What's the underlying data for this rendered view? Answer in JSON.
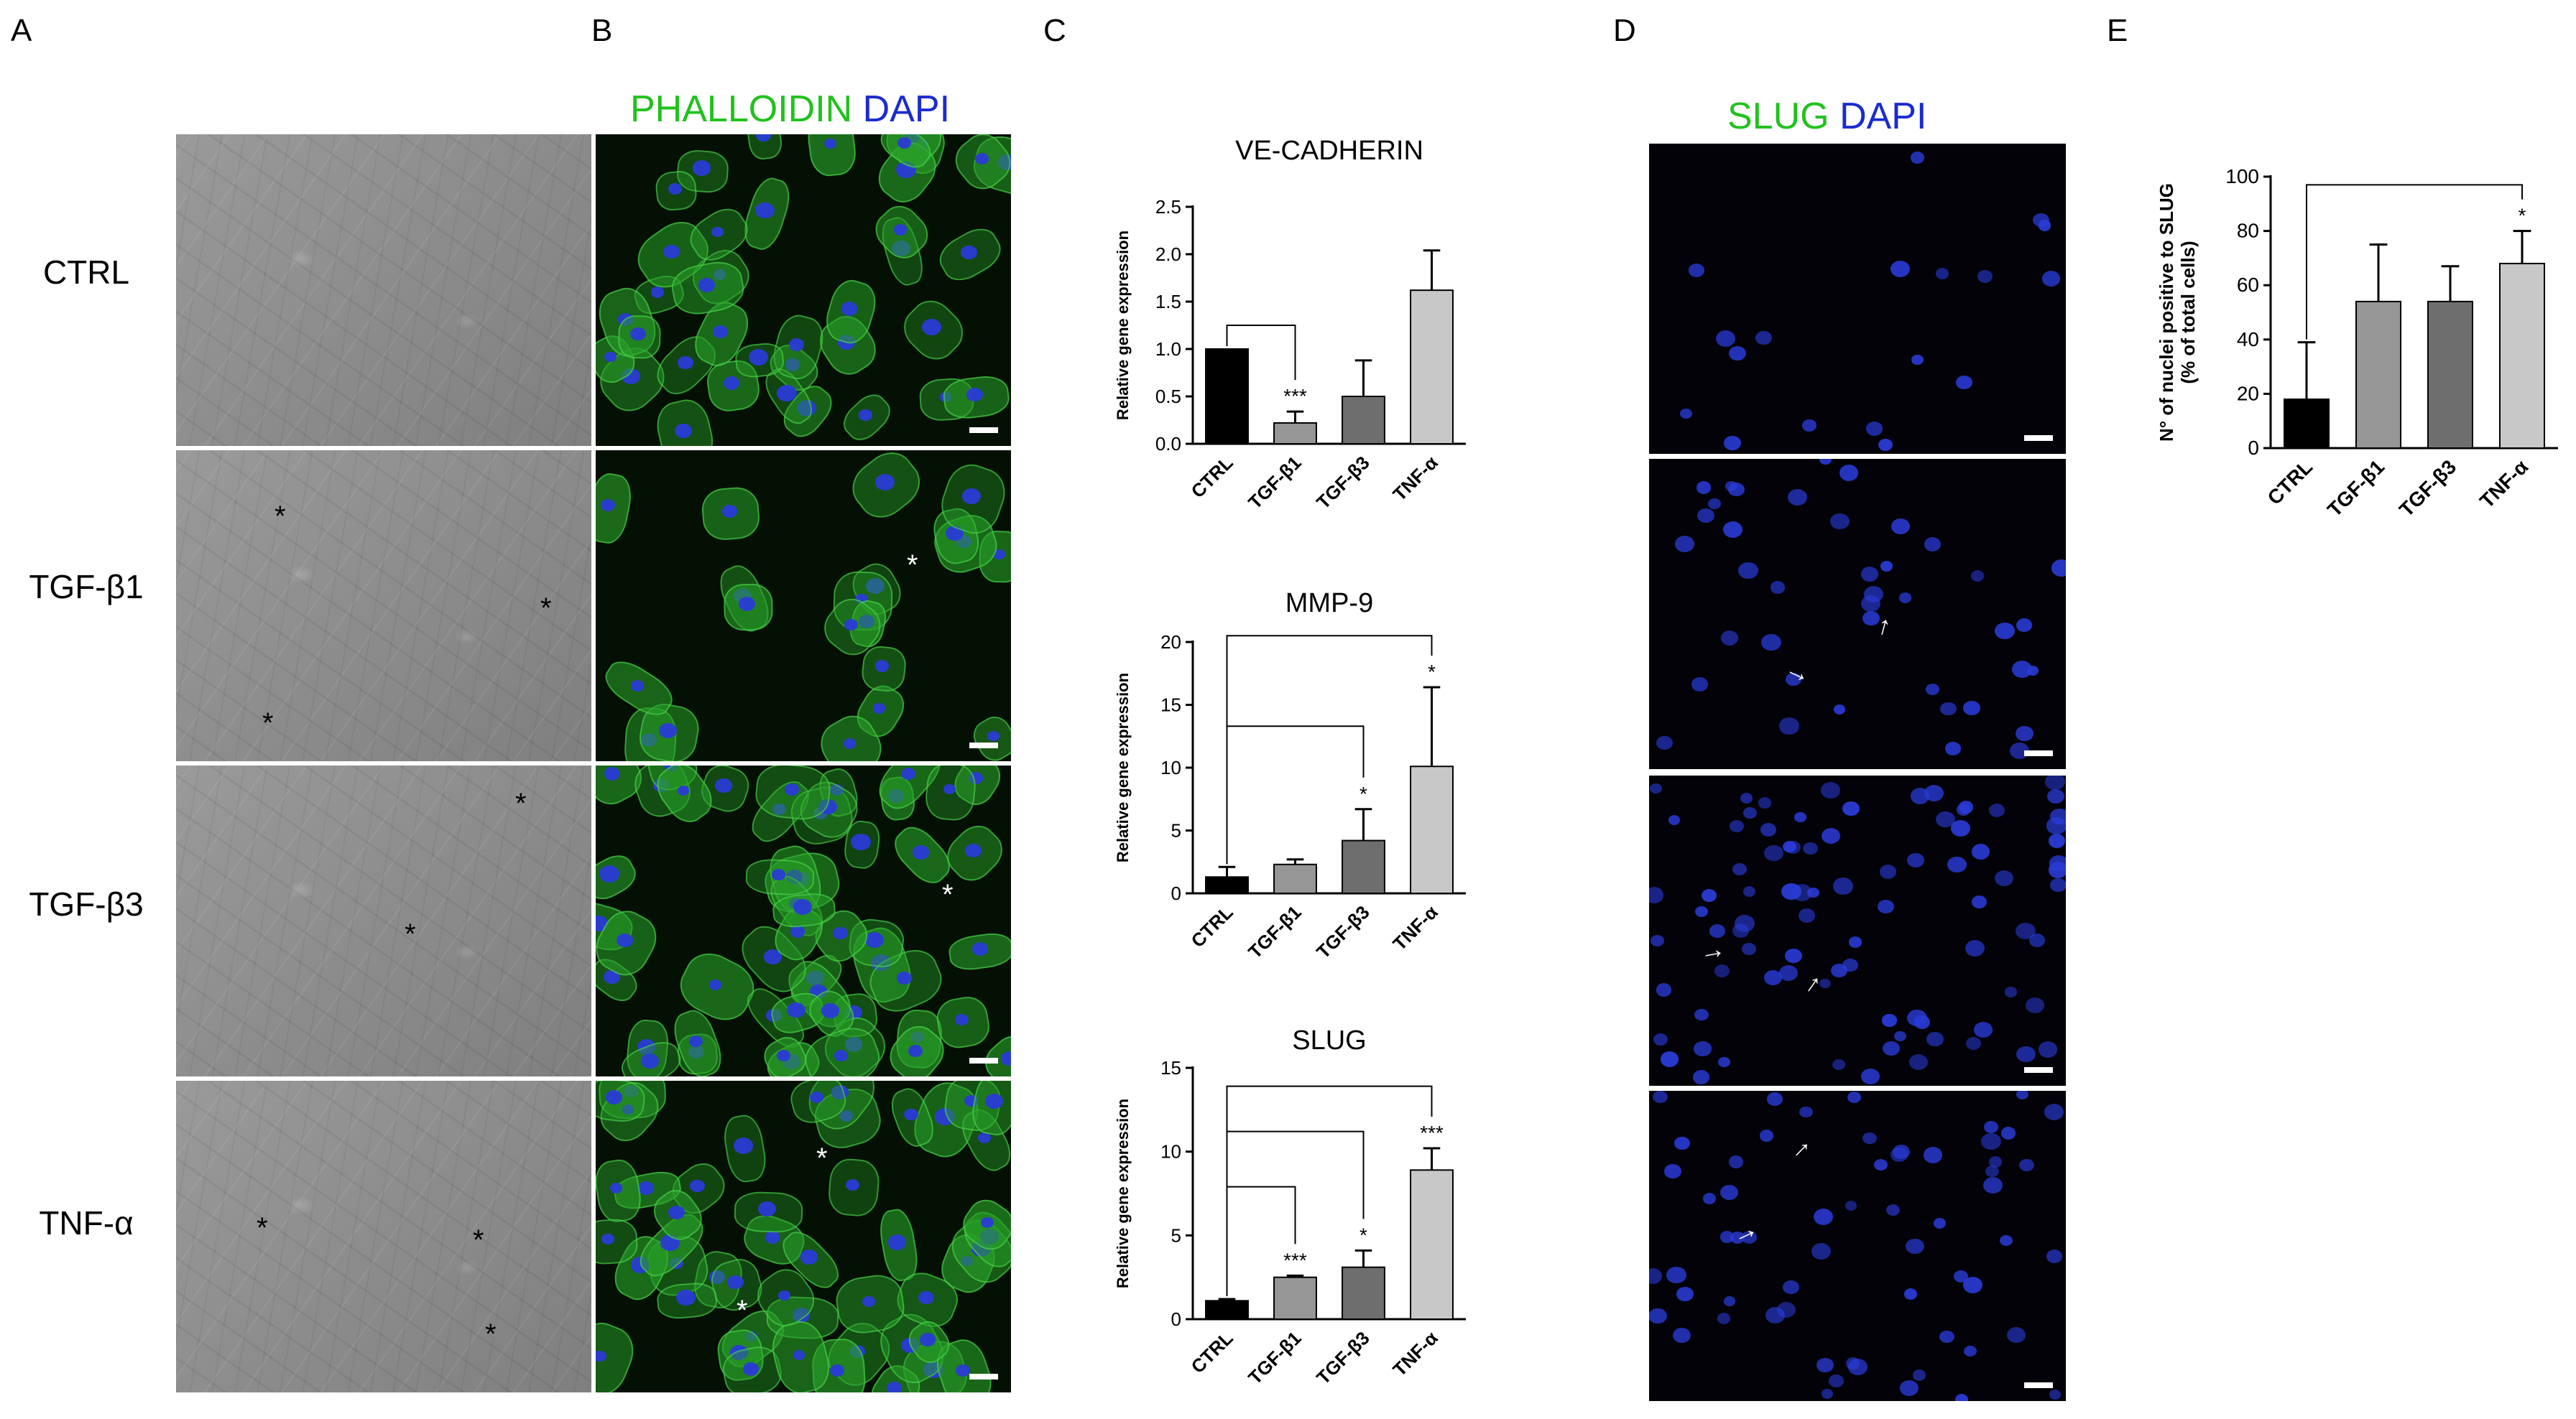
{
  "panels": {
    "a": "A",
    "b": "B",
    "c": "C",
    "d": "D",
    "e": "E"
  },
  "rows": [
    "CTRL",
    "TGF-β1",
    "TGF-β3",
    "TNF-α"
  ],
  "stain_b": {
    "green": "PHALLOIDIN",
    "blue": "DAPI"
  },
  "stain_d": {
    "green": "SLUG",
    "blue": "DAPI"
  },
  "colors": {
    "green": "#22c11e",
    "blue": "#1a2bd0",
    "ctrl": "#000000",
    "tgfb1": "#969696",
    "tgfb3": "#6e6e6e",
    "tnfa": "#c8c8c8"
  },
  "chart_data": [
    {
      "type": "bar",
      "title": "VE-CADHERIN",
      "ylabel": "Relative gene expression",
      "categories": [
        "CTRL",
        "TGF-β1",
        "TGF-β3",
        "TNF-α"
      ],
      "values": [
        1.0,
        0.22,
        0.5,
        1.62
      ],
      "errors": [
        0.0,
        0.12,
        0.38,
        0.42
      ],
      "ylim": [
        0,
        2.5
      ],
      "yticks": [
        "0.0",
        "0.5",
        "1.0",
        "1.5",
        "2.0",
        "2.5"
      ],
      "significance": [
        "",
        "***",
        "",
        ""
      ]
    },
    {
      "type": "bar",
      "title": "MMP-9",
      "ylabel": "Relative gene expression",
      "categories": [
        "CTRL",
        "TGF-β1",
        "TGF-β3",
        "TNF-α"
      ],
      "values": [
        1.3,
        2.3,
        4.2,
        10.1
      ],
      "errors": [
        0.8,
        0.4,
        2.5,
        6.3
      ],
      "ylim": [
        0,
        20
      ],
      "yticks": [
        "0",
        "5",
        "10",
        "15",
        "20"
      ],
      "significance": [
        "",
        "",
        "*",
        "*"
      ]
    },
    {
      "type": "bar",
      "title": "SLUG",
      "ylabel": "Relative gene expression",
      "categories": [
        "CTRL",
        "TGF-β1",
        "TGF-β3",
        "TNF-α"
      ],
      "values": [
        1.1,
        2.5,
        3.1,
        8.9
      ],
      "errors": [
        0.1,
        0.1,
        1.0,
        1.3
      ],
      "ylim": [
        0,
        15
      ],
      "yticks": [
        "0",
        "5",
        "10",
        "15"
      ],
      "significance": [
        "",
        "***",
        "*",
        "***"
      ]
    },
    {
      "type": "bar",
      "title": "",
      "ylabel": "N° of nuclei positive to SLUG",
      "ylabel2": "(% of total cells)",
      "categories": [
        "CTRL",
        "TGF-β1",
        "TGF-β3",
        "TNF-α"
      ],
      "values": [
        18,
        54,
        54,
        68
      ],
      "errors": [
        21,
        21,
        13,
        12
      ],
      "ylim": [
        0,
        100
      ],
      "yticks": [
        "0",
        "20",
        "40",
        "60",
        "80",
        "100"
      ],
      "significance": [
        "",
        "",
        "",
        "*"
      ]
    }
  ]
}
